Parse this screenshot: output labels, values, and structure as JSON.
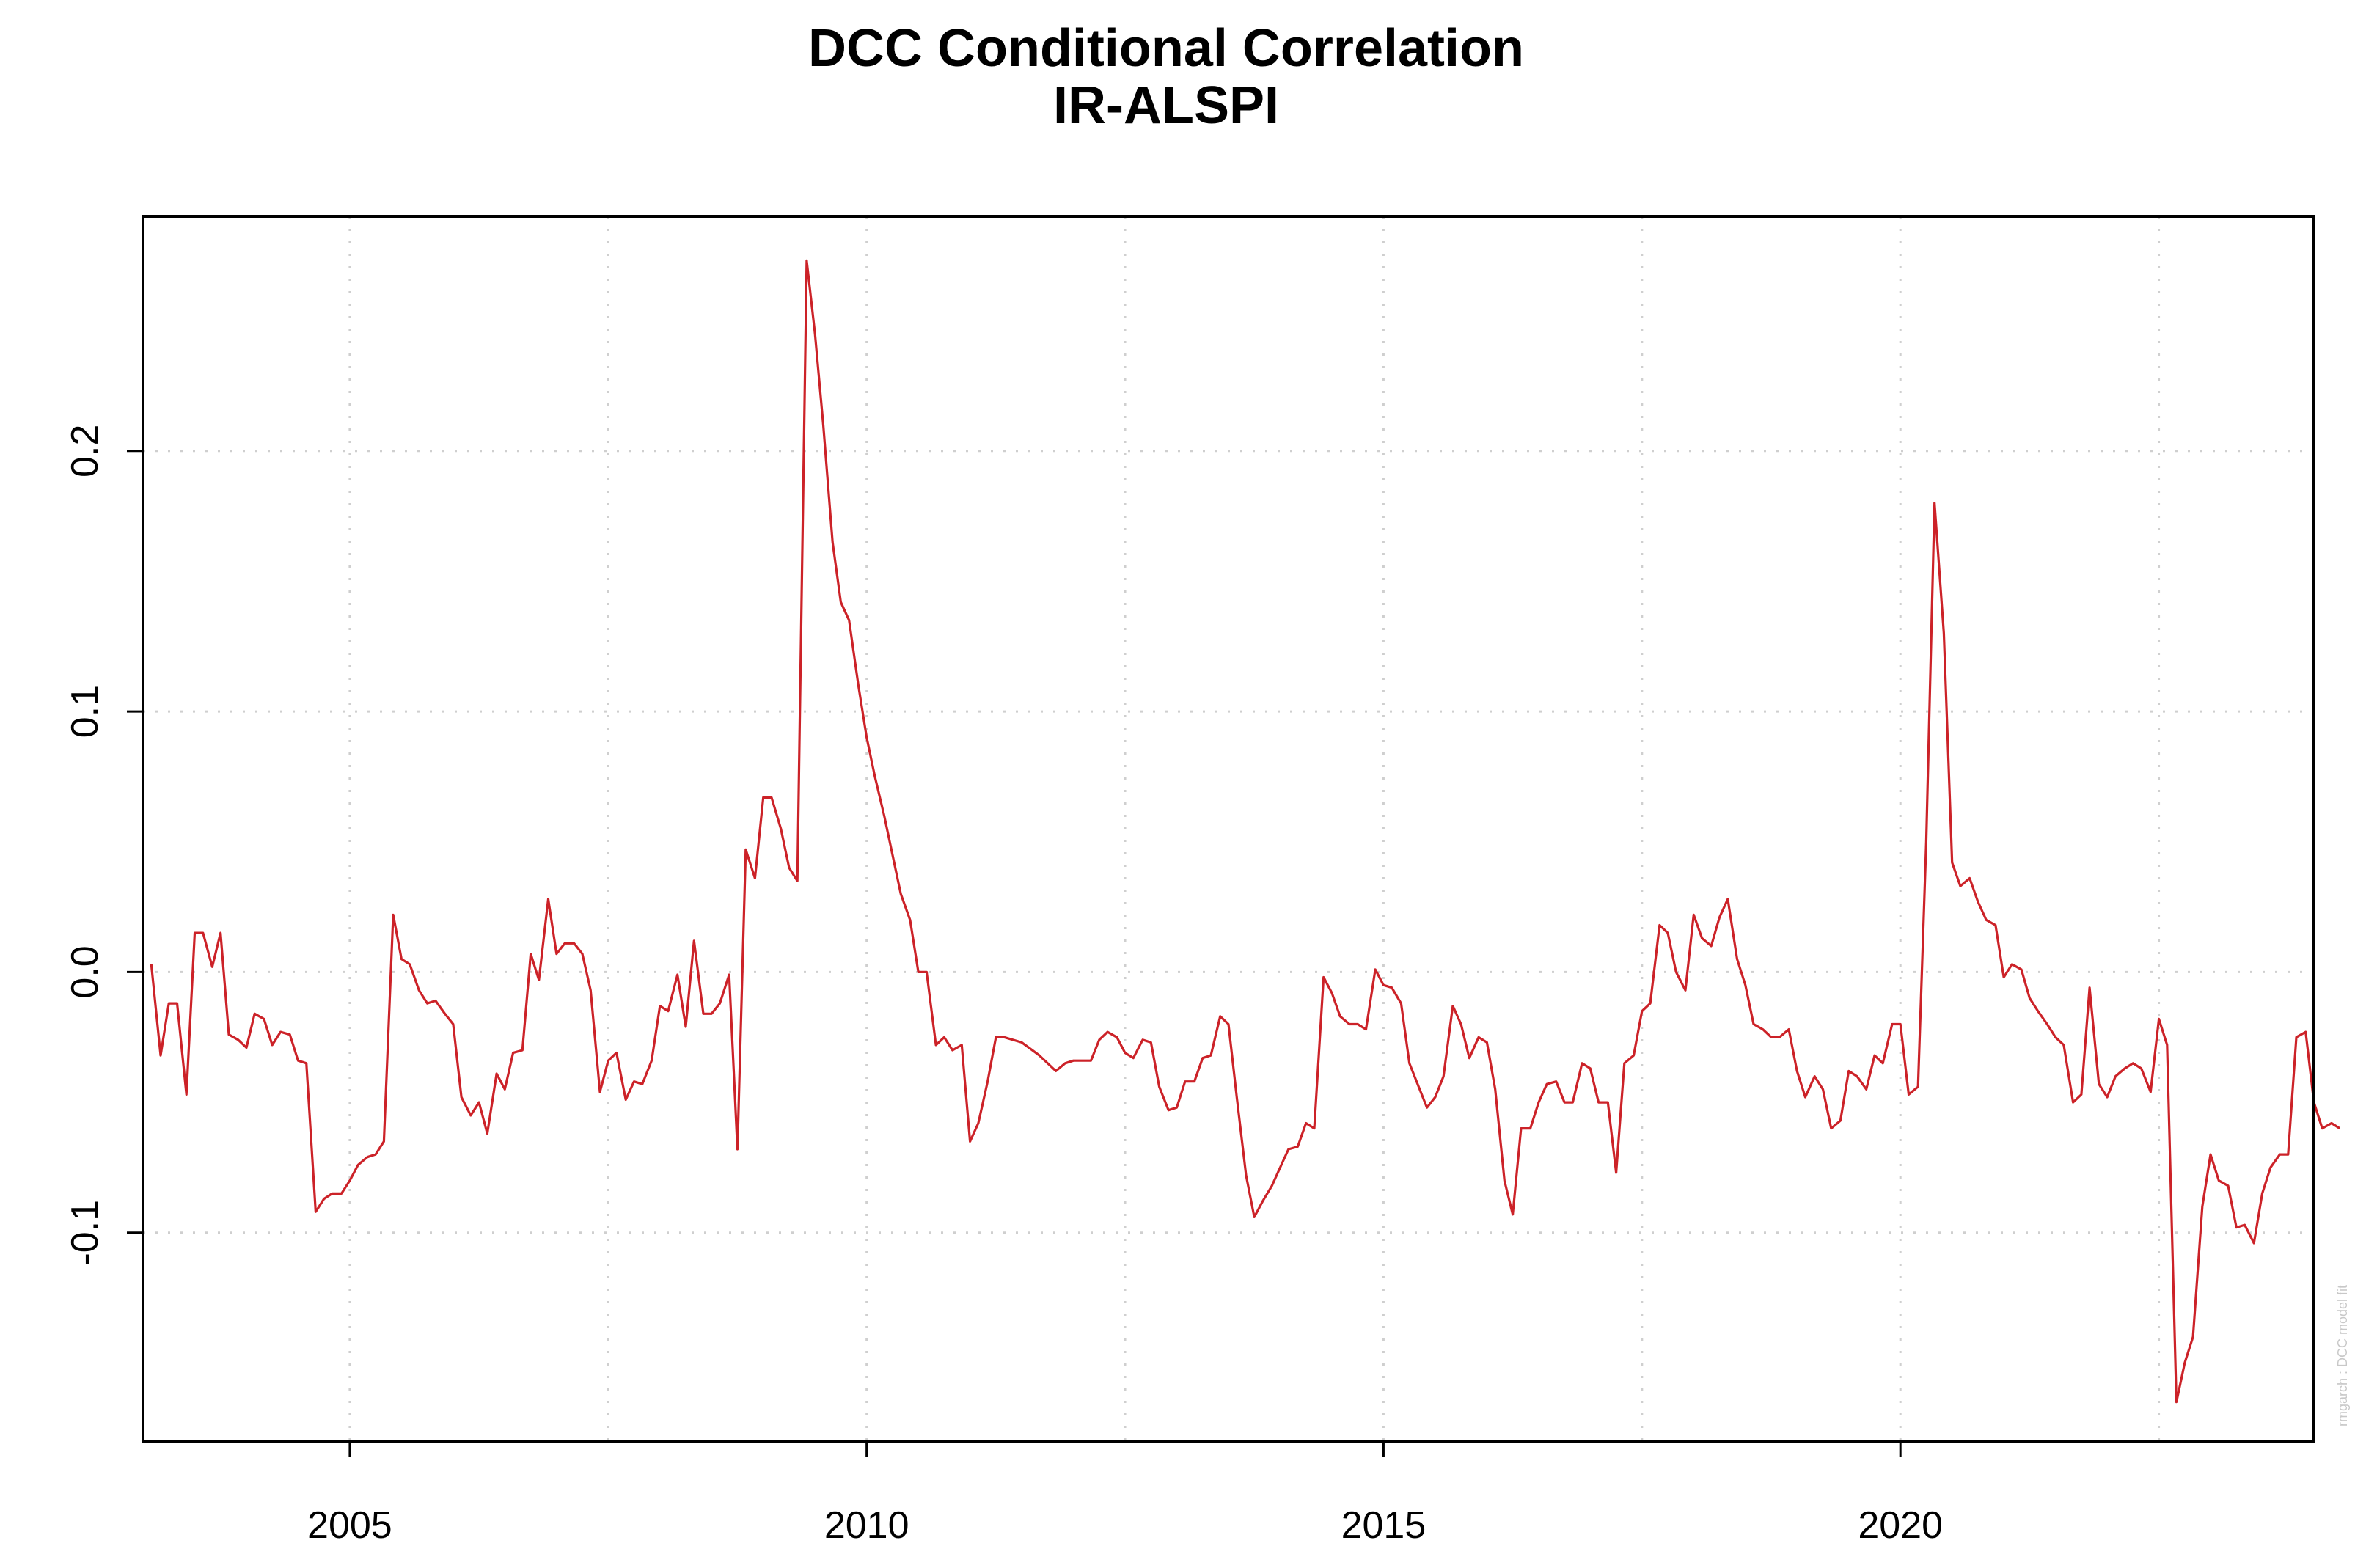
{
  "chart_data": {
    "type": "line",
    "title": "DCC Conditional Correlation",
    "subtitle": "IR-ALSPI",
    "xlabel": "",
    "ylabel": "",
    "xlim": [
      2003.0,
      2024.0
    ],
    "ylim": [
      -0.18,
      0.29
    ],
    "grid": true,
    "x_ticks": [
      2005,
      2010,
      2015,
      2020
    ],
    "x_tick_labels": [
      "2005",
      "2010",
      "2015",
      "2020"
    ],
    "y_ticks": [
      -0.1,
      0.0,
      0.1,
      0.2
    ],
    "y_tick_labels": [
      "-0.1",
      "0.0",
      "0.1",
      "0.2"
    ],
    "footnote": "rmgarch : DCC model fit",
    "series": [
      {
        "name": "IR-ALSPI",
        "color": "#cc2228",
        "points": [
          [
            2003.08,
            0.003
          ],
          [
            2003.17,
            -0.032
          ],
          [
            2003.25,
            -0.012
          ],
          [
            2003.33,
            -0.012
          ],
          [
            2003.42,
            -0.047
          ],
          [
            2003.5,
            0.015
          ],
          [
            2003.58,
            0.015
          ],
          [
            2003.67,
            0.002
          ],
          [
            2003.75,
            0.015
          ],
          [
            2003.83,
            -0.024
          ],
          [
            2003.92,
            -0.026
          ],
          [
            2004.0,
            -0.029
          ],
          [
            2004.08,
            -0.016
          ],
          [
            2004.17,
            -0.018
          ],
          [
            2004.25,
            -0.028
          ],
          [
            2004.33,
            -0.023
          ],
          [
            2004.42,
            -0.024
          ],
          [
            2004.5,
            -0.034
          ],
          [
            2004.58,
            -0.035
          ],
          [
            2004.67,
            -0.092
          ],
          [
            2004.75,
            -0.087
          ],
          [
            2004.83,
            -0.085
          ],
          [
            2004.92,
            -0.085
          ],
          [
            2005.0,
            -0.08
          ],
          [
            2005.08,
            -0.074
          ],
          [
            2005.17,
            -0.071
          ],
          [
            2005.25,
            -0.07
          ],
          [
            2005.33,
            -0.065
          ],
          [
            2005.42,
            0.022
          ],
          [
            2005.5,
            0.005
          ],
          [
            2005.58,
            0.003
          ],
          [
            2005.67,
            -0.007
          ],
          [
            2005.75,
            -0.012
          ],
          [
            2005.83,
            -0.011
          ],
          [
            2005.92,
            -0.016
          ],
          [
            2006.0,
            -0.02
          ],
          [
            2006.08,
            -0.048
          ],
          [
            2006.17,
            -0.055
          ],
          [
            2006.25,
            -0.05
          ],
          [
            2006.33,
            -0.062
          ],
          [
            2006.42,
            -0.039
          ],
          [
            2006.5,
            -0.045
          ],
          [
            2006.58,
            -0.031
          ],
          [
            2006.67,
            -0.03
          ],
          [
            2006.75,
            0.007
          ],
          [
            2006.83,
            -0.003
          ],
          [
            2006.92,
            0.028
          ],
          [
            2007.0,
            0.007
          ],
          [
            2007.08,
            0.011
          ],
          [
            2007.17,
            0.011
          ],
          [
            2007.25,
            0.007
          ],
          [
            2007.33,
            -0.007
          ],
          [
            2007.42,
            -0.046
          ],
          [
            2007.5,
            -0.034
          ],
          [
            2007.58,
            -0.031
          ],
          [
            2007.67,
            -0.049
          ],
          [
            2007.75,
            -0.042
          ],
          [
            2007.83,
            -0.043
          ],
          [
            2007.92,
            -0.034
          ],
          [
            2008.0,
            -0.013
          ],
          [
            2008.08,
            -0.015
          ],
          [
            2008.17,
            -0.001
          ],
          [
            2008.25,
            -0.021
          ],
          [
            2008.33,
            0.012
          ],
          [
            2008.42,
            -0.016
          ],
          [
            2008.5,
            -0.016
          ],
          [
            2008.58,
            -0.012
          ],
          [
            2008.67,
            -0.001
          ],
          [
            2008.75,
            -0.068
          ],
          [
            2008.83,
            0.047
          ],
          [
            2008.92,
            0.036
          ],
          [
            2009.0,
            0.067
          ],
          [
            2009.08,
            0.067
          ],
          [
            2009.17,
            0.055
          ],
          [
            2009.25,
            0.04
          ],
          [
            2009.33,
            0.035
          ],
          [
            2009.42,
            0.273
          ],
          [
            2009.5,
            0.245
          ],
          [
            2009.58,
            0.21
          ],
          [
            2009.67,
            0.165
          ],
          [
            2009.75,
            0.142
          ],
          [
            2009.83,
            0.135
          ],
          [
            2009.92,
            0.11
          ],
          [
            2010.0,
            0.09
          ],
          [
            2010.08,
            0.075
          ],
          [
            2010.17,
            0.06
          ],
          [
            2010.25,
            0.045
          ],
          [
            2010.33,
            0.03
          ],
          [
            2010.42,
            0.02
          ],
          [
            2010.5,
            0.0
          ],
          [
            2010.58,
            0.0
          ],
          [
            2010.67,
            -0.028
          ],
          [
            2010.75,
            -0.025
          ],
          [
            2010.83,
            -0.03
          ],
          [
            2010.92,
            -0.028
          ],
          [
            2011.0,
            -0.065
          ],
          [
            2011.08,
            -0.058
          ],
          [
            2011.17,
            -0.042
          ],
          [
            2011.25,
            -0.025
          ],
          [
            2011.33,
            -0.025
          ],
          [
            2011.5,
            -0.027
          ],
          [
            2011.67,
            -0.032
          ],
          [
            2011.83,
            -0.038
          ],
          [
            2011.92,
            -0.035
          ],
          [
            2012.0,
            -0.034
          ],
          [
            2012.17,
            -0.034
          ],
          [
            2012.25,
            -0.026
          ],
          [
            2012.33,
            -0.023
          ],
          [
            2012.42,
            -0.025
          ],
          [
            2012.5,
            -0.031
          ],
          [
            2012.58,
            -0.033
          ],
          [
            2012.67,
            -0.026
          ],
          [
            2012.75,
            -0.027
          ],
          [
            2012.83,
            -0.044
          ],
          [
            2012.92,
            -0.053
          ],
          [
            2013.0,
            -0.052
          ],
          [
            2013.08,
            -0.042
          ],
          [
            2013.17,
            -0.042
          ],
          [
            2013.25,
            -0.033
          ],
          [
            2013.33,
            -0.032
          ],
          [
            2013.42,
            -0.017
          ],
          [
            2013.5,
            -0.02
          ],
          [
            2013.58,
            -0.048
          ],
          [
            2013.67,
            -0.078
          ],
          [
            2013.75,
            -0.094
          ],
          [
            2013.83,
            -0.088
          ],
          [
            2013.92,
            -0.082
          ],
          [
            2014.0,
            -0.075
          ],
          [
            2014.08,
            -0.068
          ],
          [
            2014.17,
            -0.067
          ],
          [
            2014.25,
            -0.058
          ],
          [
            2014.33,
            -0.06
          ],
          [
            2014.42,
            -0.002
          ],
          [
            2014.5,
            -0.008
          ],
          [
            2014.58,
            -0.017
          ],
          [
            2014.67,
            -0.02
          ],
          [
            2014.75,
            -0.02
          ],
          [
            2014.83,
            -0.022
          ],
          [
            2014.92,
            0.001
          ],
          [
            2015.0,
            -0.005
          ],
          [
            2015.08,
            -0.006
          ],
          [
            2015.17,
            -0.012
          ],
          [
            2015.25,
            -0.035
          ],
          [
            2015.33,
            -0.043
          ],
          [
            2015.42,
            -0.052
          ],
          [
            2015.5,
            -0.048
          ],
          [
            2015.58,
            -0.04
          ],
          [
            2015.67,
            -0.013
          ],
          [
            2015.75,
            -0.02
          ],
          [
            2015.83,
            -0.033
          ],
          [
            2015.92,
            -0.025
          ],
          [
            2016.0,
            -0.027
          ],
          [
            2016.08,
            -0.045
          ],
          [
            2016.17,
            -0.08
          ],
          [
            2016.25,
            -0.093
          ],
          [
            2016.33,
            -0.06
          ],
          [
            2016.42,
            -0.06
          ],
          [
            2016.5,
            -0.05
          ],
          [
            2016.58,
            -0.043
          ],
          [
            2016.67,
            -0.042
          ],
          [
            2016.75,
            -0.05
          ],
          [
            2016.83,
            -0.05
          ],
          [
            2016.92,
            -0.035
          ],
          [
            2017.0,
            -0.037
          ],
          [
            2017.08,
            -0.05
          ],
          [
            2017.17,
            -0.05
          ],
          [
            2017.25,
            -0.077
          ],
          [
            2017.33,
            -0.035
          ],
          [
            2017.42,
            -0.032
          ],
          [
            2017.5,
            -0.015
          ],
          [
            2017.58,
            -0.012
          ],
          [
            2017.67,
            0.018
          ],
          [
            2017.75,
            0.015
          ],
          [
            2017.83,
            0.0
          ],
          [
            2017.92,
            -0.007
          ],
          [
            2018.0,
            0.022
          ],
          [
            2018.08,
            0.013
          ],
          [
            2018.17,
            0.01
          ],
          [
            2018.25,
            0.021
          ],
          [
            2018.33,
            0.028
          ],
          [
            2018.42,
            0.005
          ],
          [
            2018.5,
            -0.005
          ],
          [
            2018.58,
            -0.02
          ],
          [
            2018.67,
            -0.022
          ],
          [
            2018.75,
            -0.025
          ],
          [
            2018.83,
            -0.025
          ],
          [
            2018.92,
            -0.022
          ],
          [
            2019.0,
            -0.038
          ],
          [
            2019.08,
            -0.048
          ],
          [
            2019.17,
            -0.04
          ],
          [
            2019.25,
            -0.045
          ],
          [
            2019.33,
            -0.06
          ],
          [
            2019.42,
            -0.057
          ],
          [
            2019.5,
            -0.038
          ],
          [
            2019.58,
            -0.04
          ],
          [
            2019.67,
            -0.045
          ],
          [
            2019.75,
            -0.032
          ],
          [
            2019.83,
            -0.035
          ],
          [
            2019.92,
            -0.02
          ],
          [
            2020.0,
            -0.02
          ],
          [
            2020.08,
            -0.047
          ],
          [
            2020.17,
            -0.044
          ],
          [
            2020.25,
            0.05
          ],
          [
            2020.33,
            0.18
          ],
          [
            2020.42,
            0.13
          ],
          [
            2020.5,
            0.042
          ],
          [
            2020.58,
            0.033
          ],
          [
            2020.67,
            0.036
          ],
          [
            2020.75,
            0.027
          ],
          [
            2020.83,
            0.02
          ],
          [
            2020.92,
            0.018
          ],
          [
            2021.0,
            -0.002
          ],
          [
            2021.08,
            0.003
          ],
          [
            2021.17,
            0.001
          ],
          [
            2021.25,
            -0.01
          ],
          [
            2021.33,
            -0.015
          ],
          [
            2021.42,
            -0.02
          ],
          [
            2021.5,
            -0.025
          ],
          [
            2021.58,
            -0.028
          ],
          [
            2021.67,
            -0.05
          ],
          [
            2021.75,
            -0.047
          ],
          [
            2021.83,
            -0.006
          ],
          [
            2021.92,
            -0.043
          ],
          [
            2022.0,
            -0.048
          ],
          [
            2022.08,
            -0.04
          ],
          [
            2022.17,
            -0.037
          ],
          [
            2022.25,
            -0.035
          ],
          [
            2022.33,
            -0.037
          ],
          [
            2022.42,
            -0.046
          ],
          [
            2022.5,
            -0.018
          ],
          [
            2022.58,
            -0.028
          ],
          [
            2022.67,
            -0.165
          ],
          [
            2022.75,
            -0.15
          ],
          [
            2022.83,
            -0.14
          ],
          [
            2022.92,
            -0.09
          ],
          [
            2023.0,
            -0.07
          ],
          [
            2023.08,
            -0.08
          ],
          [
            2023.17,
            -0.082
          ],
          [
            2023.25,
            -0.098
          ],
          [
            2023.33,
            -0.097
          ],
          [
            2023.42,
            -0.104
          ],
          [
            2023.5,
            -0.085
          ],
          [
            2023.58,
            -0.075
          ],
          [
            2023.67,
            -0.07
          ],
          [
            2023.75,
            -0.07
          ],
          [
            2023.83,
            -0.025
          ],
          [
            2023.92,
            -0.023
          ],
          [
            2024.0,
            -0.05
          ],
          [
            2024.08,
            -0.06
          ],
          [
            2024.17,
            -0.058
          ],
          [
            2024.25,
            -0.06
          ]
        ]
      }
    ]
  }
}
